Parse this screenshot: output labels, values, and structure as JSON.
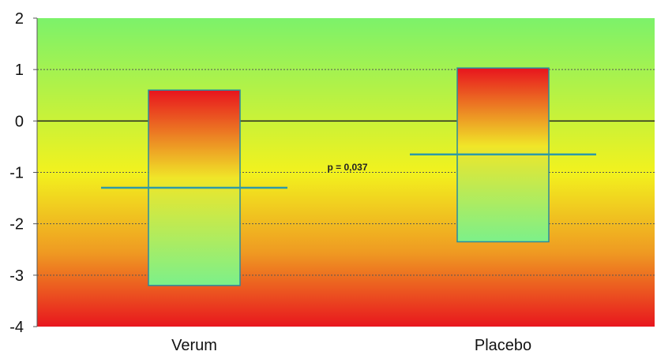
{
  "chart_data": {
    "type": "bar",
    "subtype": "floating-bar-with-mean-line",
    "title": "",
    "xlabel": "",
    "ylabel": "",
    "categories": [
      "Verum",
      "Placebo"
    ],
    "bars": [
      {
        "category": "Verum",
        "low": -3.2,
        "high": 0.6,
        "mean": -1.3
      },
      {
        "category": "Placebo",
        "low": -2.35,
        "high": 1.03,
        "mean": -0.65
      }
    ],
    "ylim": [
      -4,
      2
    ],
    "yticks": [
      "2",
      "1",
      "0",
      "-1",
      "-2",
      "-3",
      "-4"
    ],
    "grid": "dotted horizontal lines at each integer; solid line at 0",
    "annotations": [
      {
        "text": "p = 0,037",
        "x_between": [
          "Verum",
          "Placebo"
        ],
        "y": -0.9
      }
    ],
    "colors": {
      "background_top": "#7cf26a",
      "background_mid": "#f2f21e",
      "background_bottom": "#e8161e",
      "bar_top": "#e8141e",
      "bar_mid": "#f0e628",
      "bar_bottom": "#7cf08a",
      "bar_outline": "#2a8a9e",
      "mean_line": "#2e9aa6",
      "zero_line": "#222222",
      "grid": "#555555"
    }
  }
}
